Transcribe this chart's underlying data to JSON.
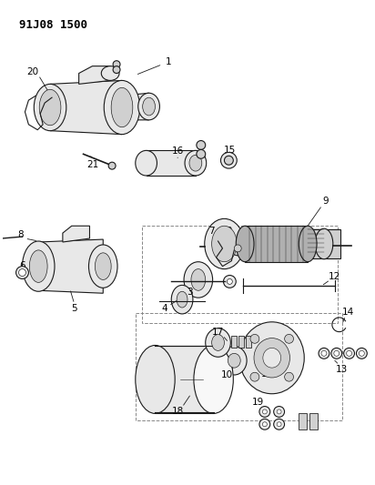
{
  "title": "91J08 1500",
  "bg_color": "#ffffff",
  "line_color": "#1a1a1a",
  "label_color": "#000000",
  "title_fontsize": 9,
  "label_fontsize": 7.5,
  "figsize": [
    4.12,
    5.33
  ],
  "dpi": 100
}
